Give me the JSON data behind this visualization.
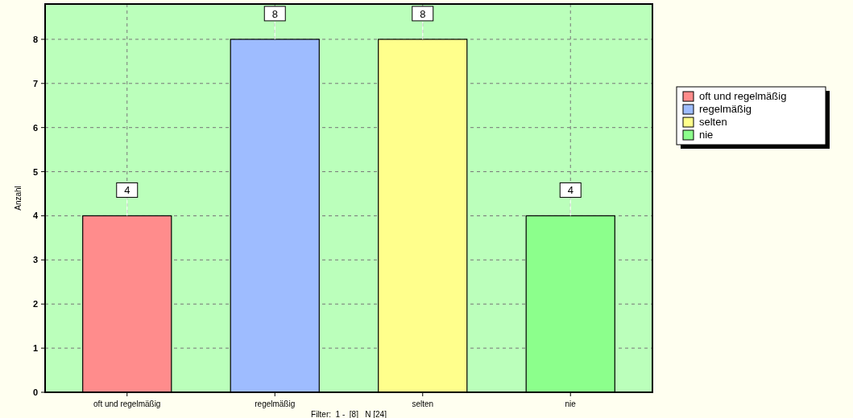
{
  "chart_data": {
    "type": "bar",
    "ylabel": "Anzahl",
    "categories": [
      "oft und regelmäßig",
      "regelmäßig",
      "selten",
      "nie"
    ],
    "series": [
      {
        "name": "oft und regelmäßig",
        "color": "#ff8c8c",
        "values": [
          4,
          null,
          null,
          null
        ]
      },
      {
        "name": "regelmäßig",
        "color": "#9ebcff",
        "values": [
          null,
          8,
          null,
          null
        ]
      },
      {
        "name": "selten",
        "color": "#ffff8c",
        "values": [
          null,
          null,
          8,
          null
        ]
      },
      {
        "name": "nie",
        "color": "#8cff8c",
        "values": [
          null,
          null,
          null,
          4
        ]
      }
    ],
    "stacked": true,
    "ylim": [
      0,
      8.8
    ],
    "yticks": [
      0,
      1,
      2,
      3,
      4,
      5,
      6,
      7,
      8
    ],
    "grid": true,
    "legend": "right",
    "data_labels": true,
    "annotations": [
      "Filter:  1 -  [8]   N [24]"
    ]
  }
}
